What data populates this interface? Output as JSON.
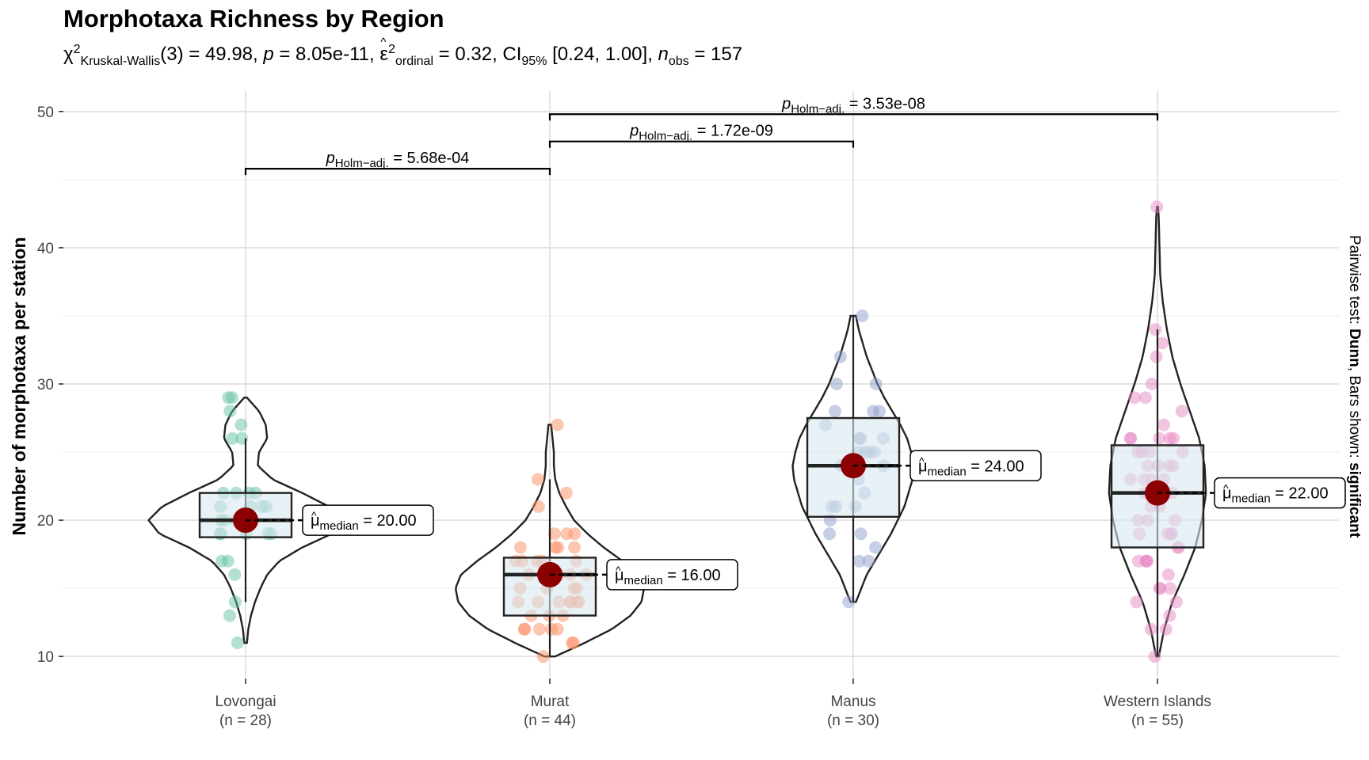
{
  "chart_data": {
    "type": "violin",
    "title": "Morphotaxa Richness by Region",
    "subtitle": {
      "chi_symbol": "χ",
      "chi_sup": "2",
      "chi_sub": "Kruskal-Wallis",
      "df_and_stat": "(3) = 49.98, ",
      "p_symbol": "p",
      "p_value": " = 8.05e-11, ",
      "epsilon_symbol": "ε",
      "epsilon_hat": "^",
      "epsilon_sup": "2",
      "epsilon_sub": "ordinal",
      "effect_and_ci": " = 0.32, CI",
      "ci_sub": "95%",
      "ci_values": " [0.24, 1.00], ",
      "n_symbol": "n",
      "n_sub": "obs",
      "n_value": " = 157"
    },
    "ylabel": "Number of morphotaxa per station",
    "right_caption": {
      "prefix": "Pairwise test: ",
      "test": "Dunn",
      "middle": ", Bars shown: ",
      "bars": "significant"
    },
    "ylim": [
      8.5,
      51.5
    ],
    "y_ticks": [
      10,
      20,
      30,
      40,
      50
    ],
    "grid": true,
    "groups": [
      {
        "name": "Lovongai",
        "n_label": "(n = 28)",
        "color": "#66C2A5",
        "median": 20,
        "q1": 18.75,
        "q3": 22,
        "whisker_low": 14,
        "whisker_high": 26,
        "min": 11,
        "max": 29,
        "median_label": "= 20.00",
        "violin": [
          [
            11,
            0.01
          ],
          [
            12,
            0.02
          ],
          [
            13,
            0.04
          ],
          [
            14,
            0.07
          ],
          [
            15,
            0.11
          ],
          [
            16,
            0.16
          ],
          [
            17,
            0.25
          ],
          [
            18,
            0.42
          ],
          [
            19,
            0.64
          ],
          [
            20,
            0.72
          ],
          [
            21,
            0.62
          ],
          [
            22,
            0.42
          ],
          [
            23,
            0.2
          ],
          [
            24,
            0.09
          ],
          [
            25,
            0.1
          ],
          [
            26,
            0.16
          ],
          [
            27,
            0.15
          ],
          [
            28,
            0.1
          ],
          [
            29,
            0.01
          ]
        ],
        "points": [
          11,
          13,
          14,
          16,
          17,
          17,
          19,
          19,
          19,
          19,
          19,
          20,
          20,
          20,
          21,
          21,
          21,
          21,
          22,
          22,
          22,
          22,
          26,
          26,
          27,
          28,
          29,
          29
        ]
      },
      {
        "name": "Murat",
        "n_label": "(n = 44)",
        "color": "#FC8D62",
        "median": 16,
        "q1": 13,
        "q3": 17.25,
        "whisker_low": 10,
        "whisker_high": 23,
        "min": 10,
        "max": 27,
        "median_label": "= 16.00",
        "violin": [
          [
            10,
            0.04
          ],
          [
            11,
            0.26
          ],
          [
            12,
            0.46
          ],
          [
            13,
            0.6
          ],
          [
            14,
            0.68
          ],
          [
            15,
            0.7
          ],
          [
            16,
            0.66
          ],
          [
            17,
            0.54
          ],
          [
            18,
            0.4
          ],
          [
            19,
            0.28
          ],
          [
            20,
            0.18
          ],
          [
            21,
            0.12
          ],
          [
            22,
            0.07
          ],
          [
            23,
            0.04
          ],
          [
            24,
            0.03
          ],
          [
            25,
            0.03
          ],
          [
            26,
            0.02
          ],
          [
            27,
            0.01
          ]
        ],
        "points": [
          10,
          11,
          11,
          12,
          12,
          12,
          12,
          12,
          13,
          13,
          13,
          14,
          14,
          14,
          14,
          14,
          14,
          14,
          15,
          15,
          15,
          15,
          16,
          16,
          16,
          16,
          16,
          16,
          17,
          17,
          17,
          17,
          17,
          18,
          18,
          18,
          18,
          19,
          19,
          19,
          21,
          22,
          23,
          27
        ]
      },
      {
        "name": "Manus",
        "n_label": "(n = 30)",
        "color": "#8DA0CB",
        "median": 24,
        "q1": 20.25,
        "q3": 27.5,
        "whisker_low": 14,
        "whisker_high": 35,
        "min": 14,
        "max": 35,
        "median_label": "= 24.00",
        "violin": [
          [
            14,
            0.02
          ],
          [
            15,
            0.06
          ],
          [
            16,
            0.1
          ],
          [
            17,
            0.16
          ],
          [
            18,
            0.22
          ],
          [
            19,
            0.28
          ],
          [
            20,
            0.33
          ],
          [
            21,
            0.38
          ],
          [
            22,
            0.41
          ],
          [
            23,
            0.44
          ],
          [
            24,
            0.45
          ],
          [
            25,
            0.43
          ],
          [
            26,
            0.4
          ],
          [
            27,
            0.35
          ],
          [
            28,
            0.29
          ],
          [
            29,
            0.23
          ],
          [
            30,
            0.18
          ],
          [
            31,
            0.14
          ],
          [
            32,
            0.1
          ],
          [
            33,
            0.07
          ],
          [
            34,
            0.04
          ],
          [
            35,
            0.02
          ]
        ],
        "points": [
          14,
          17,
          17,
          18,
          19,
          19,
          20,
          21,
          21,
          21,
          22,
          23,
          24,
          24,
          24,
          25,
          25,
          25,
          25,
          26,
          26,
          26,
          27,
          28,
          28,
          28,
          30,
          30,
          32,
          35
        ]
      },
      {
        "name": "Western Islands",
        "n_label": "(n = 55)",
        "color": "#E78AC3",
        "median": 22,
        "q1": 18,
        "q3": 25.5,
        "whisker_low": 10,
        "whisker_high": 34,
        "min": 10,
        "max": 43,
        "median_label": "= 22.00",
        "violin": [
          [
            10,
            0.01
          ],
          [
            12,
            0.05
          ],
          [
            14,
            0.11
          ],
          [
            16,
            0.2
          ],
          [
            18,
            0.28
          ],
          [
            20,
            0.33
          ],
          [
            22,
            0.36
          ],
          [
            24,
            0.35
          ],
          [
            26,
            0.31
          ],
          [
            28,
            0.24
          ],
          [
            30,
            0.17
          ],
          [
            32,
            0.11
          ],
          [
            34,
            0.07
          ],
          [
            36,
            0.04
          ],
          [
            38,
            0.02
          ],
          [
            40,
            0.015
          ],
          [
            42,
            0.01
          ],
          [
            43,
            0.005
          ]
        ],
        "points": [
          10,
          12,
          12,
          13,
          14,
          14,
          15,
          15,
          15,
          16,
          17,
          17,
          17,
          17,
          18,
          18,
          19,
          19,
          19,
          19,
          20,
          20,
          20,
          21,
          21,
          22,
          22,
          22,
          22,
          23,
          23,
          23,
          23,
          24,
          24,
          24,
          24,
          25,
          25,
          25,
          25,
          26,
          26,
          26,
          26,
          26,
          27,
          28,
          29,
          29,
          30,
          32,
          33,
          34,
          43
        ]
      }
    ],
    "comparisons": [
      {
        "from": 0,
        "to": 1,
        "y": 45.8,
        "p_symbol": "p",
        "p_sub": "Holm−adj.",
        "p_value": "= 5.68e-04"
      },
      {
        "from": 1,
        "to": 2,
        "y": 47.8,
        "p_symbol": "p",
        "p_sub": "Holm−adj.",
        "p_value": "= 1.72e-09"
      },
      {
        "from": 1,
        "to": 3,
        "y": 49.8,
        "p_symbol": "p",
        "p_sub": "Holm−adj.",
        "p_value": "= 3.53e-08"
      }
    ],
    "median_symbol": "μ",
    "median_sub": "median",
    "box_fill": "#D9E8EE",
    "median_point_color": "#8B0000"
  }
}
